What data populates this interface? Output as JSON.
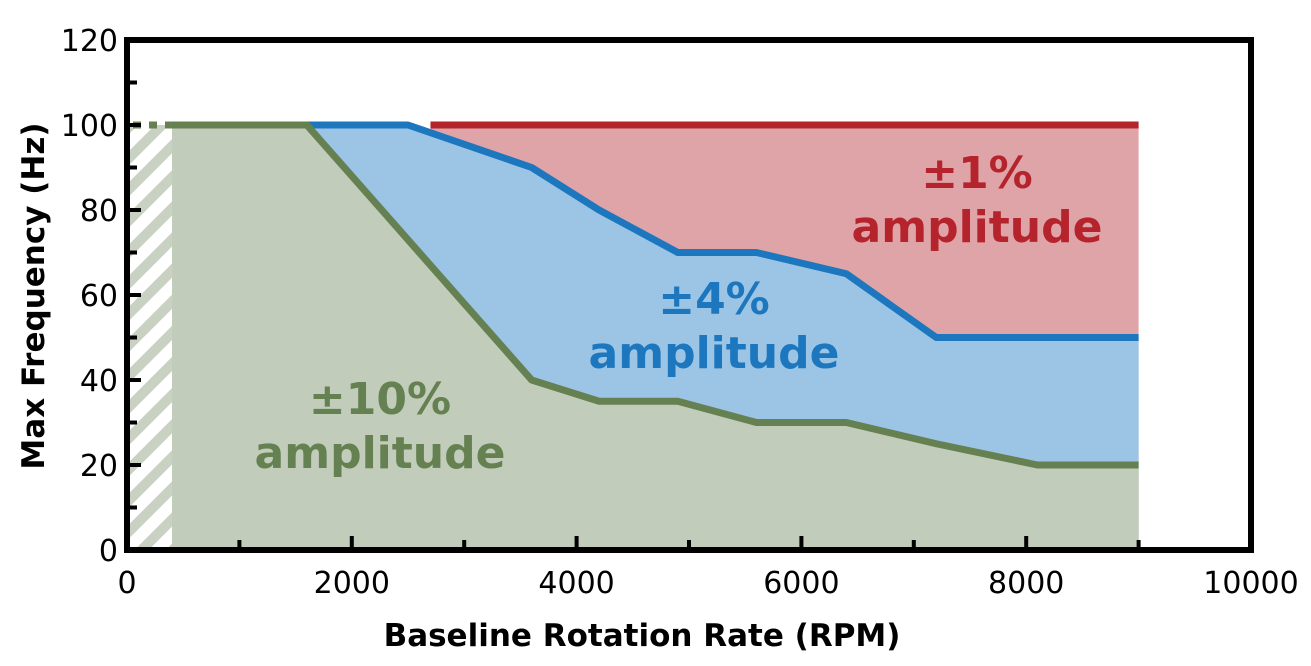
{
  "chart_data": {
    "type": "area",
    "xlabel": "Baseline Rotation Rate (RPM)",
    "ylabel": "Max Frequency (Hz)",
    "xlim": [
      0,
      10000
    ],
    "ylim": [
      0,
      120
    ],
    "xticks": [
      0,
      2000,
      4000,
      6000,
      8000,
      10000
    ],
    "yticks": [
      0,
      20,
      40,
      60,
      80,
      100,
      120
    ],
    "x_minor_step": 1000,
    "y_minor_step": 10,
    "grid": false,
    "hatched_region": {
      "x": [
        0,
        400
      ],
      "y": [
        0,
        100
      ]
    },
    "dotted_extension": {
      "x": [
        0,
        400
      ],
      "y": 100
    },
    "series": [
      {
        "name": "±1%",
        "label_lines": [
          "±1%",
          "amplitude"
        ],
        "color": "#b5232d",
        "fill": "#dfa4a7",
        "x": [
          2700,
          9000
        ],
        "y": [
          100,
          100
        ]
      },
      {
        "name": "±4%",
        "label_lines": [
          "±4%",
          "amplitude"
        ],
        "color": "#1d77be",
        "fill": "#9cc5e5",
        "x": [
          1600,
          2500,
          3600,
          4200,
          4900,
          5600,
          6400,
          7200,
          9000
        ],
        "y": [
          100,
          100,
          90,
          80,
          70,
          70,
          65,
          50,
          50
        ]
      },
      {
        "name": "±10%",
        "label_lines": [
          "±10%",
          "amplitude"
        ],
        "color": "#658051",
        "fill": "#c2ccba",
        "x": [
          400,
          1600,
          2600,
          3600,
          4200,
          4900,
          5600,
          6400,
          7200,
          8100,
          9000
        ],
        "y": [
          100,
          100,
          70,
          40,
          35,
          35,
          30,
          30,
          25,
          20,
          20
        ]
      }
    ]
  }
}
